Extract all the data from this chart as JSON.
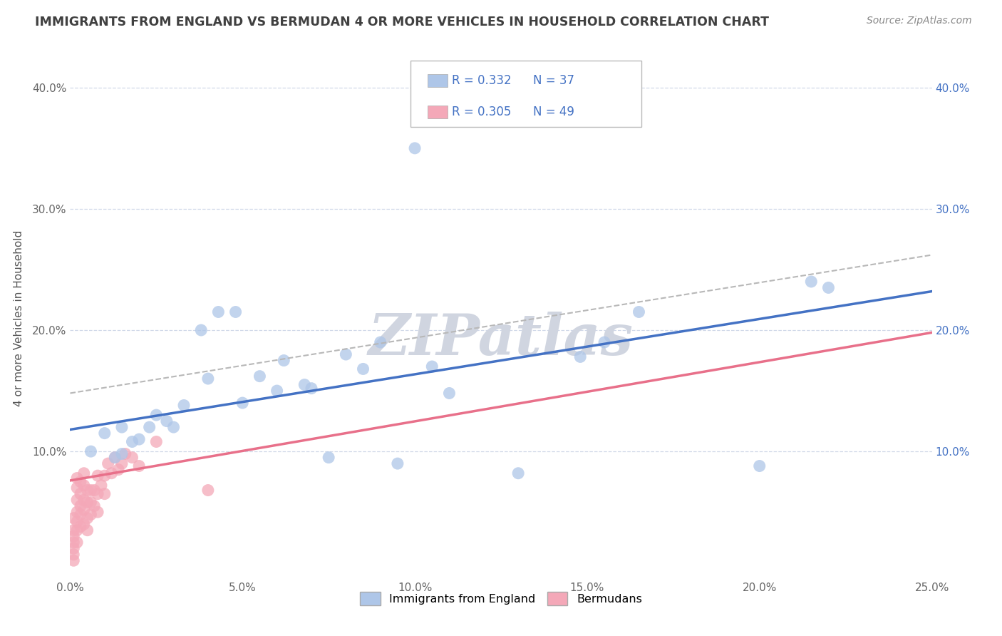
{
  "title": "IMMIGRANTS FROM ENGLAND VS BERMUDAN 4 OR MORE VEHICLES IN HOUSEHOLD CORRELATION CHART",
  "source": "Source: ZipAtlas.com",
  "ylabel": "4 or more Vehicles in Household",
  "watermark": "ZIPatlas",
  "legend_blue_R": "R = 0.332",
  "legend_blue_N": "N = 37",
  "legend_pink_R": "R = 0.305",
  "legend_pink_N": "N = 49",
  "legend_label_blue": "Immigrants from England",
  "legend_label_pink": "Bermudans",
  "xlim": [
    0.0,
    0.25
  ],
  "ylim": [
    -0.005,
    0.425
  ],
  "xtick_labels": [
    "0.0%",
    "5.0%",
    "10.0%",
    "15.0%",
    "20.0%",
    "25.0%"
  ],
  "xtick_vals": [
    0.0,
    0.05,
    0.1,
    0.15,
    0.2,
    0.25
  ],
  "ytick_labels": [
    "10.0%",
    "20.0%",
    "30.0%",
    "40.0%"
  ],
  "ytick_vals": [
    0.1,
    0.2,
    0.3,
    0.4
  ],
  "blue_scatter_x": [
    0.006,
    0.01,
    0.013,
    0.015,
    0.015,
    0.018,
    0.02,
    0.023,
    0.025,
    0.028,
    0.03,
    0.033,
    0.038,
    0.04,
    0.043,
    0.048,
    0.05,
    0.055,
    0.06,
    0.062,
    0.068,
    0.07,
    0.075,
    0.08,
    0.085,
    0.09,
    0.095,
    0.1,
    0.105,
    0.11,
    0.13,
    0.148,
    0.155,
    0.165,
    0.2,
    0.215,
    0.22
  ],
  "blue_scatter_y": [
    0.1,
    0.115,
    0.095,
    0.12,
    0.098,
    0.108,
    0.11,
    0.12,
    0.13,
    0.125,
    0.12,
    0.138,
    0.2,
    0.16,
    0.215,
    0.215,
    0.14,
    0.162,
    0.15,
    0.175,
    0.155,
    0.152,
    0.095,
    0.18,
    0.168,
    0.19,
    0.09,
    0.35,
    0.17,
    0.148,
    0.082,
    0.178,
    0.19,
    0.215,
    0.088,
    0.24,
    0.235
  ],
  "pink_scatter_x": [
    0.001,
    0.001,
    0.001,
    0.001,
    0.001,
    0.001,
    0.001,
    0.002,
    0.002,
    0.002,
    0.002,
    0.002,
    0.002,
    0.002,
    0.003,
    0.003,
    0.003,
    0.003,
    0.003,
    0.004,
    0.004,
    0.004,
    0.004,
    0.004,
    0.005,
    0.005,
    0.005,
    0.005,
    0.006,
    0.006,
    0.006,
    0.007,
    0.007,
    0.008,
    0.008,
    0.008,
    0.009,
    0.01,
    0.01,
    0.011,
    0.012,
    0.013,
    0.014,
    0.015,
    0.016,
    0.018,
    0.02,
    0.025,
    0.04
  ],
  "pink_scatter_y": [
    0.01,
    0.015,
    0.02,
    0.025,
    0.03,
    0.035,
    0.045,
    0.025,
    0.035,
    0.042,
    0.05,
    0.06,
    0.07,
    0.078,
    0.038,
    0.048,
    0.055,
    0.065,
    0.075,
    0.04,
    0.052,
    0.06,
    0.072,
    0.082,
    0.035,
    0.045,
    0.058,
    0.068,
    0.048,
    0.058,
    0.068,
    0.055,
    0.068,
    0.05,
    0.065,
    0.08,
    0.072,
    0.065,
    0.08,
    0.09,
    0.082,
    0.095,
    0.085,
    0.09,
    0.098,
    0.095,
    0.088,
    0.108,
    0.068
  ],
  "blue_line_x0": 0.0,
  "blue_line_y0": 0.118,
  "blue_line_x1": 0.25,
  "blue_line_y1": 0.232,
  "pink_line_x0": 0.0,
  "pink_line_y0": 0.076,
  "pink_line_x1": 0.25,
  "pink_line_y1": 0.198,
  "dash_line_x0": 0.0,
  "dash_line_y0": 0.148,
  "dash_line_x1": 0.25,
  "dash_line_y1": 0.262,
  "blue_scatter_color": "#aec6e8",
  "pink_scatter_color": "#f4a8b8",
  "blue_line_color": "#4472c4",
  "pink_line_color": "#e8708a",
  "dashed_line_color": "#b8b8b8",
  "grid_color": "#d0d8e8",
  "background_color": "#ffffff",
  "title_color": "#404040",
  "source_color": "#888888",
  "watermark_color": "#d0d5e0",
  "legend_text_color": "#4472c4"
}
